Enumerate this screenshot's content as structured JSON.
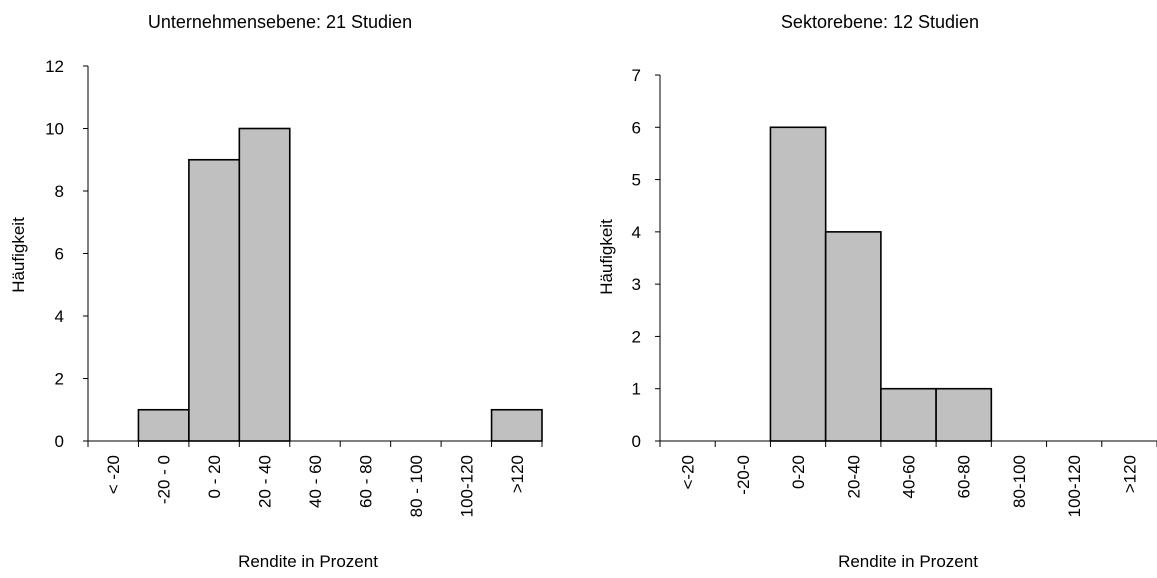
{
  "chart_data": [
    {
      "type": "bar",
      "title": "Unternehmensebene: 21 Studien",
      "xlabel": "Rendite in Prozent",
      "ylabel": "Häufigkeit",
      "categories": [
        "< -20",
        "-20 - 0",
        "0 - 20",
        "20 - 40",
        "40 - 60",
        "60 - 80",
        "80 - 100",
        "100-120",
        ">120"
      ],
      "values": [
        0,
        1,
        9,
        10,
        0,
        0,
        0,
        0,
        1
      ],
      "ylim": [
        0,
        12
      ],
      "yticks": [
        "0",
        "2",
        "4",
        "6",
        "8",
        "10",
        "12"
      ],
      "grid": false,
      "bar_color": "#c0c0c0"
    },
    {
      "type": "bar",
      "title": "Sektorebene: 12 Studien",
      "xlabel": "Rendite in Prozent",
      "ylabel": "Häufigkeit",
      "categories": [
        "<-20",
        "-20-0",
        "0-20",
        "20-40",
        "40-60",
        "60-80",
        "80-100",
        "100-120",
        ">120"
      ],
      "values": [
        0,
        0,
        6,
        4,
        1,
        1,
        0,
        0,
        0
      ],
      "ylim": [
        0,
        7
      ],
      "yticks": [
        "0",
        "1",
        "2",
        "3",
        "4",
        "5",
        "6",
        "7"
      ],
      "grid": false,
      "bar_color": "#c0c0c0"
    }
  ]
}
